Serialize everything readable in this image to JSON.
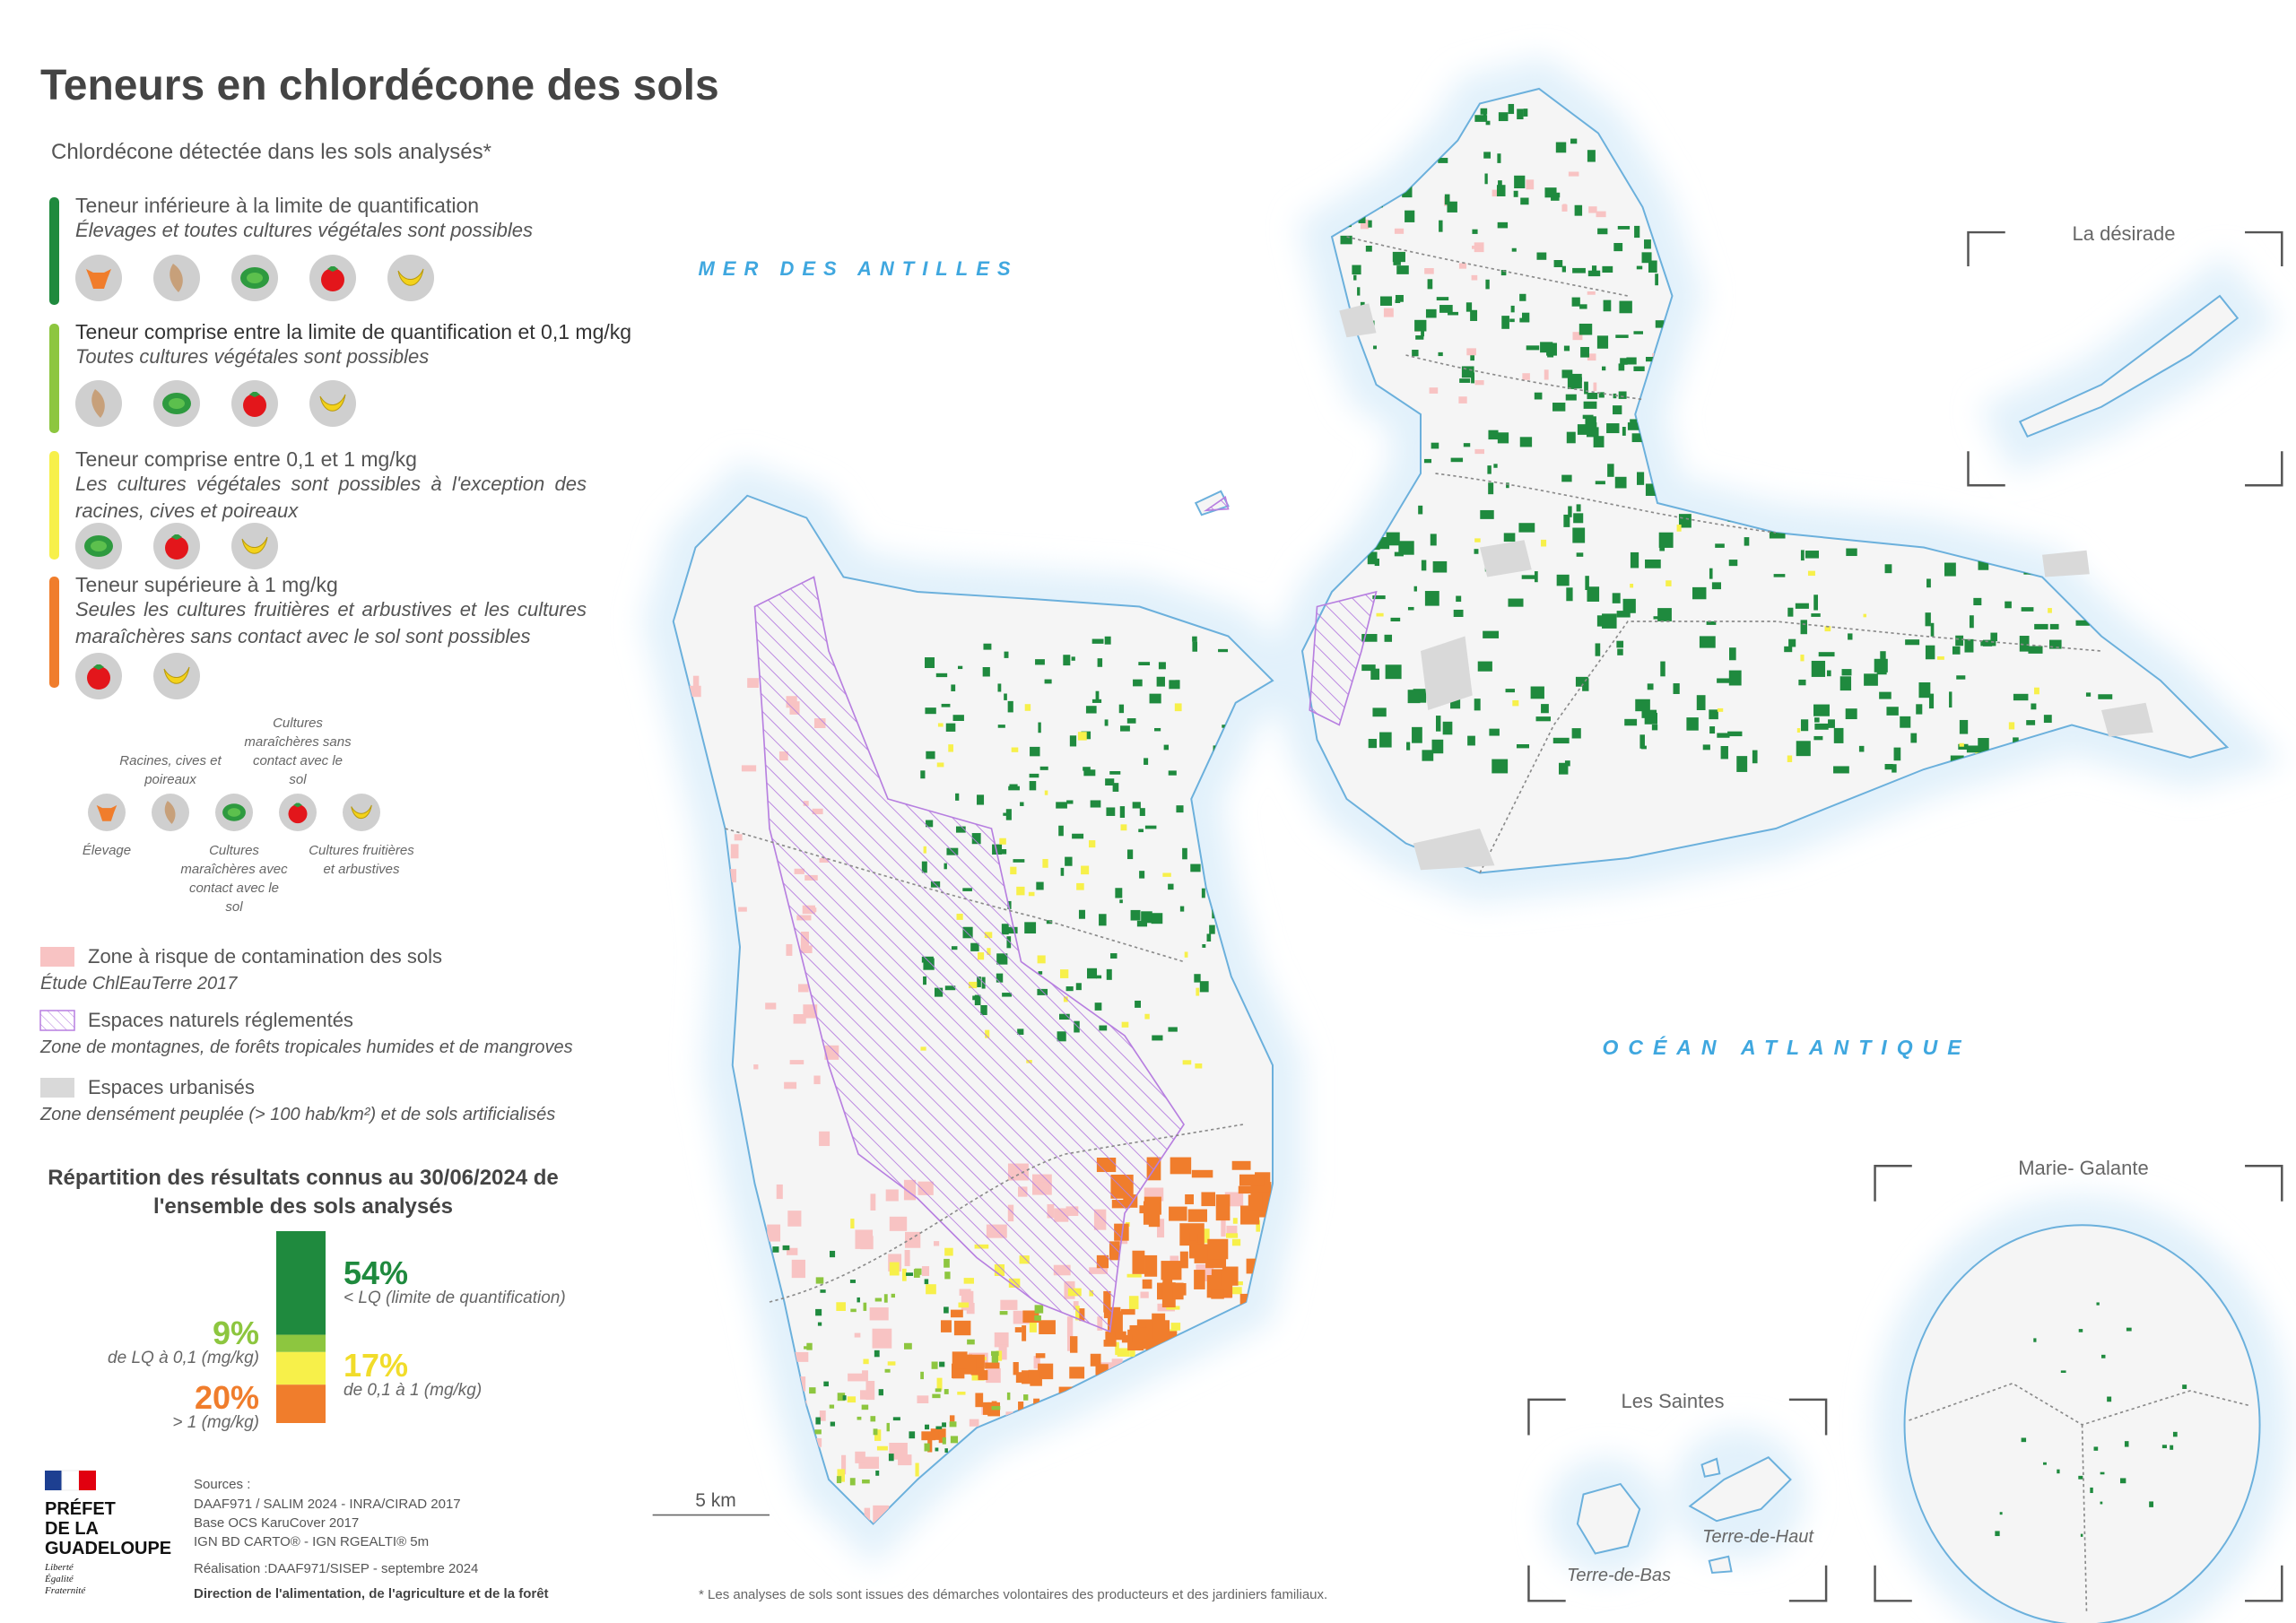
{
  "title": "Teneurs en chlordécone des sols",
  "legend": {
    "heading": "Chlordécone détectée dans les sols analysés*",
    "classes": [
      {
        "label": "Teneur inférieure à la limite de quantification",
        "note": "Élevages et toutes cultures végétales sont possibles",
        "color": "#1f8a3e"
      },
      {
        "label": "Teneur comprise entre la limite de quantification et 0,1 mg/kg",
        "note": "Toutes cultures végétales sont possibles",
        "color": "#8dc63f"
      },
      {
        "label": "Teneur comprise entre 0,1 et 1 mg/kg",
        "note": "Les cultures végétales sont possibles à l'exception des racines, cives et poireaux",
        "color": "#f7f04a"
      },
      {
        "label": "Teneur supérieure à 1 mg/kg",
        "note": "Seules les cultures fruitières et arbustives et les cultures maraîchères sans contact avec le sol sont possibles",
        "color": "#f07d2c"
      }
    ],
    "icon_key": [
      "Élevage",
      "Racines, cives et poireaux",
      "Cultures maraîchères avec contact avec le sol",
      "Cultures maraîchères sans contact avec le sol",
      "Cultures fruitières et arbustives"
    ],
    "zones": [
      {
        "label": "Zone à risque de contamination des sols",
        "note": "Étude ChlEauTerre 2017",
        "color": "#f8c3c3"
      },
      {
        "label": "Espaces naturels réglementés",
        "note": "Zone de montagnes, de forêts tropicales humides et de mangroves",
        "color": "#b77fe0"
      },
      {
        "label": "Espaces urbanisés",
        "note": "Zone densément peuplée (> 100 hab/km²) et de sols artificialisés",
        "color": "#d9d9d9"
      }
    ]
  },
  "chart_data": {
    "type": "stacked-bar",
    "title": "Répartition des résultats connus au 30/06/2024 de l'ensemble des sols analysés",
    "series": [
      {
        "name": "< LQ (limite de quantification)",
        "color": "#1f8a3e",
        "values": [
          54
        ],
        "value_labels": [
          "54%"
        ]
      },
      {
        "name": "de LQ à 0,1 (mg/kg)",
        "color": "#8dc63f",
        "values": [
          9
        ],
        "value_labels": [
          "9%"
        ]
      },
      {
        "name": "de 0,1 à 1 (mg/kg)",
        "color": "#f7f04a",
        "values": [
          17
        ],
        "value_labels": [
          "17%"
        ]
      },
      {
        "name": "> 1 (mg/kg)",
        "color": "#f07d2c",
        "values": [
          20
        ],
        "value_labels": [
          "20%"
        ]
      }
    ]
  },
  "map": {
    "labels": {
      "sea": "MER DES ANTILLES",
      "ocean": "OCÉAN ATLANTIQUE",
      "desirade": "La désirade",
      "marie_galante": "Marie- Galante",
      "saintes": "Les Saintes",
      "terre_de_haut": "Terre-de-Haut",
      "terre_de_bas": "Terre-de-Bas"
    },
    "scale": "5 km"
  },
  "sources": {
    "heading": "Sources :",
    "lines": [
      "DAAF971 / SALIM 2024 - INRA/CIRAD 2017",
      "Base OCS KaruCover 2017",
      "IGN BD CARTO® - IGN RGEALTI® 5m"
    ],
    "credit": "Réalisation :DAAF971/SISEP - septembre 2024",
    "agency": "Direction de l'alimentation, de l'agriculture et de la forêt"
  },
  "logo": {
    "lines": [
      "PRÉFET",
      "DE LA",
      "GUADELOUPE"
    ],
    "motto": [
      "Liberté",
      "Égalité",
      "Fraternité"
    ]
  },
  "footnote": "* Les analyses de sols sont issues des démarches volontaires des producteurs et des jardiniers familiaux."
}
